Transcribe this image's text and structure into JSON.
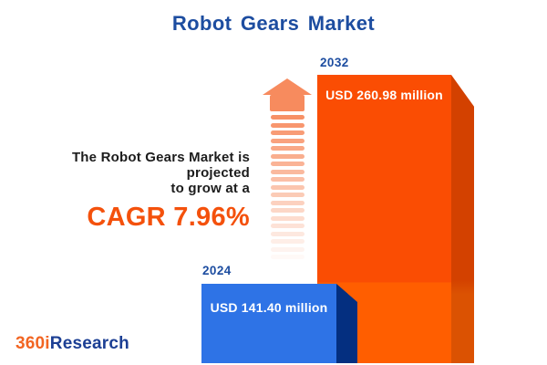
{
  "header": {
    "title": "Robot Gears Market"
  },
  "annotation": {
    "line1": "The Robot Gears Market is projected",
    "line2": "to grow at a",
    "cagr": "CAGR 7.96%"
  },
  "chart_data": {
    "type": "bar",
    "title": "Robot Gears Market",
    "categories": [
      "2024",
      "2032"
    ],
    "values": [
      141.4,
      260.98
    ],
    "unit": "USD million",
    "labels": [
      "USD 141.40 million",
      "USD 260.98 million"
    ],
    "cagr_percent": 7.96,
    "annotation": "The Robot Gears Market is projected to grow at a CAGR 7.96%",
    "legend": "none",
    "grid": false
  },
  "arrow": {
    "direction": "up",
    "dash_count": 19
  },
  "logo": {
    "part1": "360i",
    "part2": "Research"
  },
  "colors": {
    "title_blue": "#1d4da0",
    "bar_blue_front": "#2e73e6",
    "bar_blue_side": "#042f80",
    "bar_orange_front": "#fa4d03",
    "bar_orange_side": "#d34100",
    "cagr_orange": "#f4510c",
    "arrow_salmon": "#f78b5e",
    "text_dark": "#1c1c1c",
    "logo_orange": "#f26522",
    "logo_navy": "#1c3f94",
    "value_text": "#ffffff"
  }
}
